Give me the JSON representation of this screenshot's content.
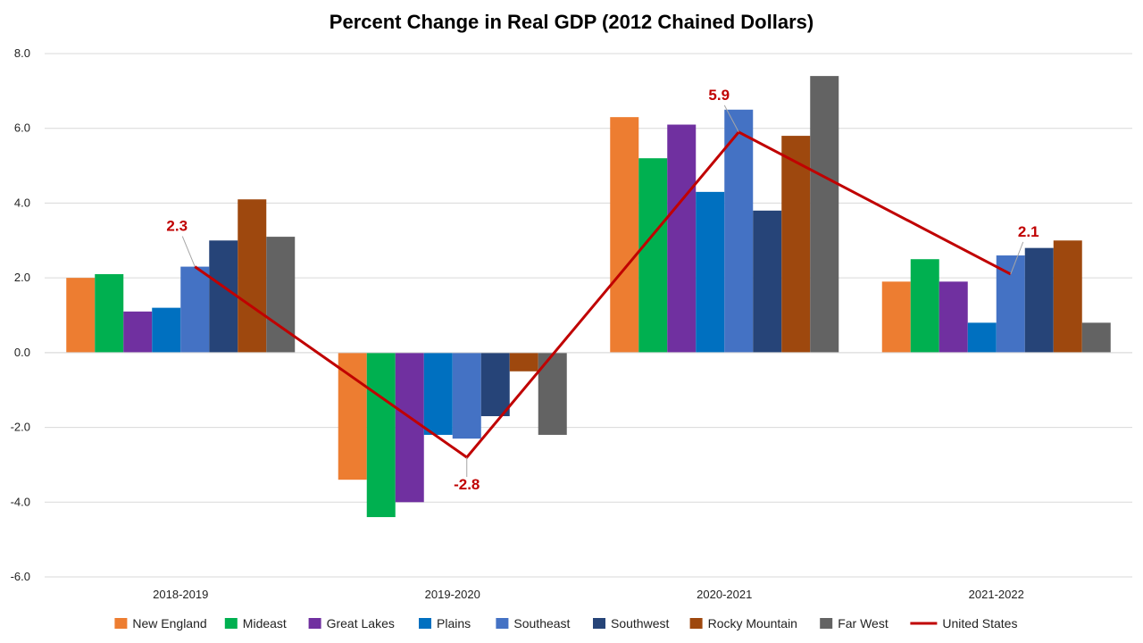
{
  "chart_data": {
    "type": "bar",
    "title": "Percent Change in Real GDP (2012 Chained Dollars)",
    "xlabel": "",
    "ylabel": "",
    "ylim": [
      -6.0,
      8.0
    ],
    "yticks": [
      "8.0",
      "6.0",
      "4.0",
      "2.0",
      "0.0",
      "-2.0",
      "-4.0",
      "-6.0"
    ],
    "ytick_values": [
      8,
      6,
      4,
      2,
      0,
      -2,
      -4,
      -6
    ],
    "grid": true,
    "legend_position": "bottom",
    "categories": [
      "2018-2019",
      "2019-2020",
      "2020-2021",
      "2021-2022"
    ],
    "series": [
      {
        "name": "New England",
        "color": "#ed7d31",
        "values": [
          2.0,
          -3.4,
          6.3,
          1.9
        ]
      },
      {
        "name": "Mideast",
        "color": "#00b050",
        "values": [
          2.1,
          -4.4,
          5.2,
          2.5
        ]
      },
      {
        "name": "Great Lakes",
        "color": "#7030a0",
        "values": [
          1.1,
          -4.0,
          6.1,
          1.9
        ]
      },
      {
        "name": "Plains",
        "color": "#0070c0",
        "values": [
          1.2,
          -2.2,
          4.3,
          0.8
        ]
      },
      {
        "name": "Southeast",
        "color": "#4472c4",
        "values": [
          2.3,
          -2.3,
          6.5,
          2.6
        ]
      },
      {
        "name": "Southwest",
        "color": "#264478",
        "values": [
          3.0,
          -1.7,
          3.8,
          2.8
        ]
      },
      {
        "name": "Rocky Mountain",
        "color": "#9e480e",
        "values": [
          4.1,
          -0.5,
          5.8,
          3.0
        ]
      },
      {
        "name": "Far West",
        "color": "#636363",
        "values": [
          3.1,
          -2.2,
          7.4,
          0.8
        ]
      }
    ],
    "line_series": {
      "name": "United States",
      "color": "#c00000",
      "values": [
        2.3,
        -2.8,
        5.9,
        2.1
      ],
      "labels": [
        "2.3",
        "-2.8",
        "5.9",
        "2.1"
      ]
    }
  }
}
